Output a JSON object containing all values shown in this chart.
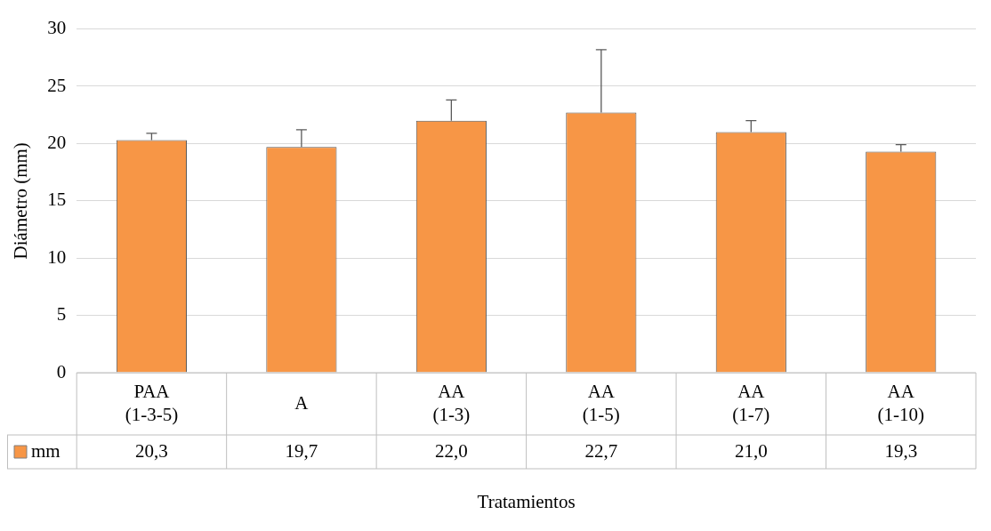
{
  "chart_data": {
    "type": "bar",
    "xlabel": "Tratamientos",
    "ylabel": "Diámetro (mm)",
    "categories": [
      "PAA (1-3-5)",
      "A",
      "AA (1-3)",
      "AA (1-5)",
      "AA (1-7)",
      "AA (1-10)"
    ],
    "series": [
      {
        "name": "mm",
        "color": "#f79646",
        "values": [
          20.3,
          19.7,
          22.0,
          22.7,
          21.0,
          19.3
        ],
        "errors": [
          [
            20.3,
            20.9
          ],
          [
            19.7,
            21.2
          ],
          [
            22.0,
            23.8
          ],
          [
            22.7,
            28.2
          ],
          [
            21.0,
            22.0
          ],
          [
            19.3,
            19.9
          ]
        ],
        "value_labels": [
          "20,3",
          "19,7",
          "22,0",
          "22,7",
          "21,0",
          "19,3"
        ]
      }
    ],
    "ylim": [
      0,
      30
    ],
    "yticks": [
      0,
      5,
      10,
      15,
      20,
      25,
      30
    ],
    "grid": "y",
    "legend": "bottom"
  }
}
